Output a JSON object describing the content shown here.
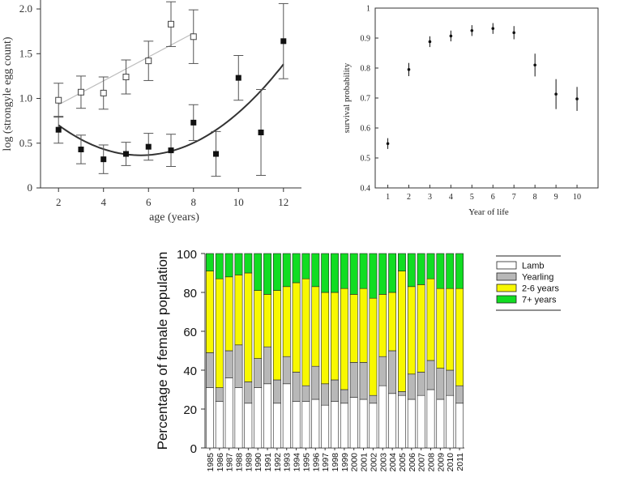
{
  "chart_data": [
    {
      "type": "scatter",
      "title": "",
      "xlabel": "age (years)",
      "ylabel": "log (strongyle egg count)",
      "xlim": [
        1.2,
        12.8
      ],
      "ylim": [
        0,
        2.1
      ],
      "xticks": [
        "2",
        "4",
        "6",
        "8",
        "10",
        "12"
      ],
      "xtick_values": [
        2,
        4,
        6,
        8,
        10,
        12
      ],
      "yticks": [
        "0",
        "0.5",
        "1.0",
        "1.5",
        "2.0"
      ],
      "ytick_values": [
        0,
        0.5,
        1.0,
        1.5,
        2.0
      ],
      "series": [
        {
          "name": "open squares",
          "marker": "open-square",
          "x": [
            2,
            3,
            4,
            5,
            6,
            7,
            8
          ],
          "y": [
            0.98,
            1.07,
            1.06,
            1.24,
            1.42,
            1.83,
            1.69
          ],
          "err": [
            0.19,
            0.18,
            0.18,
            0.19,
            0.22,
            0.25,
            0.3
          ],
          "fit": {
            "kind": "linear",
            "x0": 2,
            "x1": 8,
            "y0": 0.93,
            "y1": 1.73,
            "color": "#bdbdbd"
          }
        },
        {
          "name": "filled squares",
          "marker": "filled-square",
          "x": [
            2,
            3,
            4,
            5,
            6,
            7,
            8,
            9,
            10,
            11,
            12
          ],
          "y": [
            0.65,
            0.43,
            0.32,
            0.38,
            0.46,
            0.42,
            0.73,
            0.38,
            1.23,
            0.62,
            1.64
          ],
          "err": [
            0.15,
            0.16,
            0.16,
            0.13,
            0.15,
            0.18,
            0.2,
            0.25,
            0.25,
            0.48,
            0.42
          ],
          "fit": {
            "kind": "quadratic",
            "x0": 2,
            "x1": 12,
            "a": 0.02525,
            "b": -0.2855,
            "c": 1.1718,
            "color": "#333333"
          }
        }
      ]
    },
    {
      "type": "scatter",
      "title": "",
      "xlabel": "Year of life",
      "ylabel": "survival probability",
      "xlim": [
        0.4,
        11.0
      ],
      "ylim": [
        0.4,
        1.0
      ],
      "xticks": [
        "1",
        "2",
        "3",
        "4",
        "5",
        "6",
        "7",
        "8",
        "9",
        "10"
      ],
      "xtick_values": [
        1,
        2,
        3,
        4,
        5,
        6,
        7,
        8,
        9,
        10
      ],
      "yticks": [
        "0.4",
        "0.5",
        "0.6",
        "0.7",
        "0.8",
        "0.9",
        "1"
      ],
      "ytick_values": [
        0.4,
        0.5,
        0.6,
        0.7,
        0.8,
        0.9,
        1.0
      ],
      "x": [
        1,
        2,
        3,
        4,
        5,
        6,
        7,
        8,
        9,
        10
      ],
      "y": [
        0.548,
        0.795,
        0.888,
        0.907,
        0.925,
        0.932,
        0.918,
        0.81,
        0.713,
        0.697
      ],
      "err": [
        0.018,
        0.022,
        0.018,
        0.018,
        0.018,
        0.018,
        0.022,
        0.038,
        0.05,
        0.04
      ]
    },
    {
      "type": "bar",
      "stacked": true,
      "title": "",
      "xlabel": "",
      "ylabel": "Percentage of female population",
      "ylim": [
        0,
        100
      ],
      "yticks": [
        "0",
        "20",
        "40",
        "60",
        "80",
        "100"
      ],
      "ytick_values": [
        0,
        20,
        40,
        60,
        80,
        100
      ],
      "legend_position": "top-right",
      "categories": [
        "1985",
        "1986",
        "1987",
        "1988",
        "1989",
        "1990",
        "1991",
        "1992",
        "1993",
        "1994",
        "1995",
        "1996",
        "1997",
        "1998",
        "1999",
        "2000",
        "2001",
        "2002",
        "2003",
        "2004",
        "2005",
        "2006",
        "2007",
        "2008",
        "2009",
        "2010",
        "2011"
      ],
      "series": [
        {
          "name": "Lamb",
          "color": "#ffffff",
          "values": [
            31,
            24,
            36,
            31,
            23,
            31,
            33,
            23,
            33,
            24,
            24,
            25,
            22,
            24,
            23,
            26,
            25,
            23,
            32,
            28,
            27,
            25,
            27,
            30,
            25,
            27,
            23
          ]
        },
        {
          "name": "Yearling",
          "color": "#b8b8b8",
          "values": [
            18,
            7,
            14,
            22,
            11,
            15,
            19,
            12,
            14,
            15,
            8,
            17,
            11,
            11,
            7,
            18,
            19,
            4,
            15,
            22,
            2,
            13,
            12,
            15,
            16,
            13,
            9
          ]
        },
        {
          "name": "2-6 years",
          "color": "#f8f800",
          "values": [
            42,
            56,
            38,
            36,
            56,
            35,
            27,
            46,
            36,
            46,
            55,
            41,
            47,
            45,
            52,
            35,
            38,
            50,
            32,
            30,
            62,
            45,
            45,
            42,
            41,
            42,
            50
          ]
        },
        {
          "name": "7+ years",
          "color": "#11dd22",
          "values": [
            9,
            13,
            12,
            11,
            10,
            19,
            21,
            19,
            17,
            15,
            13,
            17,
            20,
            20,
            18,
            21,
            18,
            23,
            21,
            20,
            9,
            17,
            16,
            13,
            18,
            18,
            18
          ]
        }
      ]
    }
  ]
}
